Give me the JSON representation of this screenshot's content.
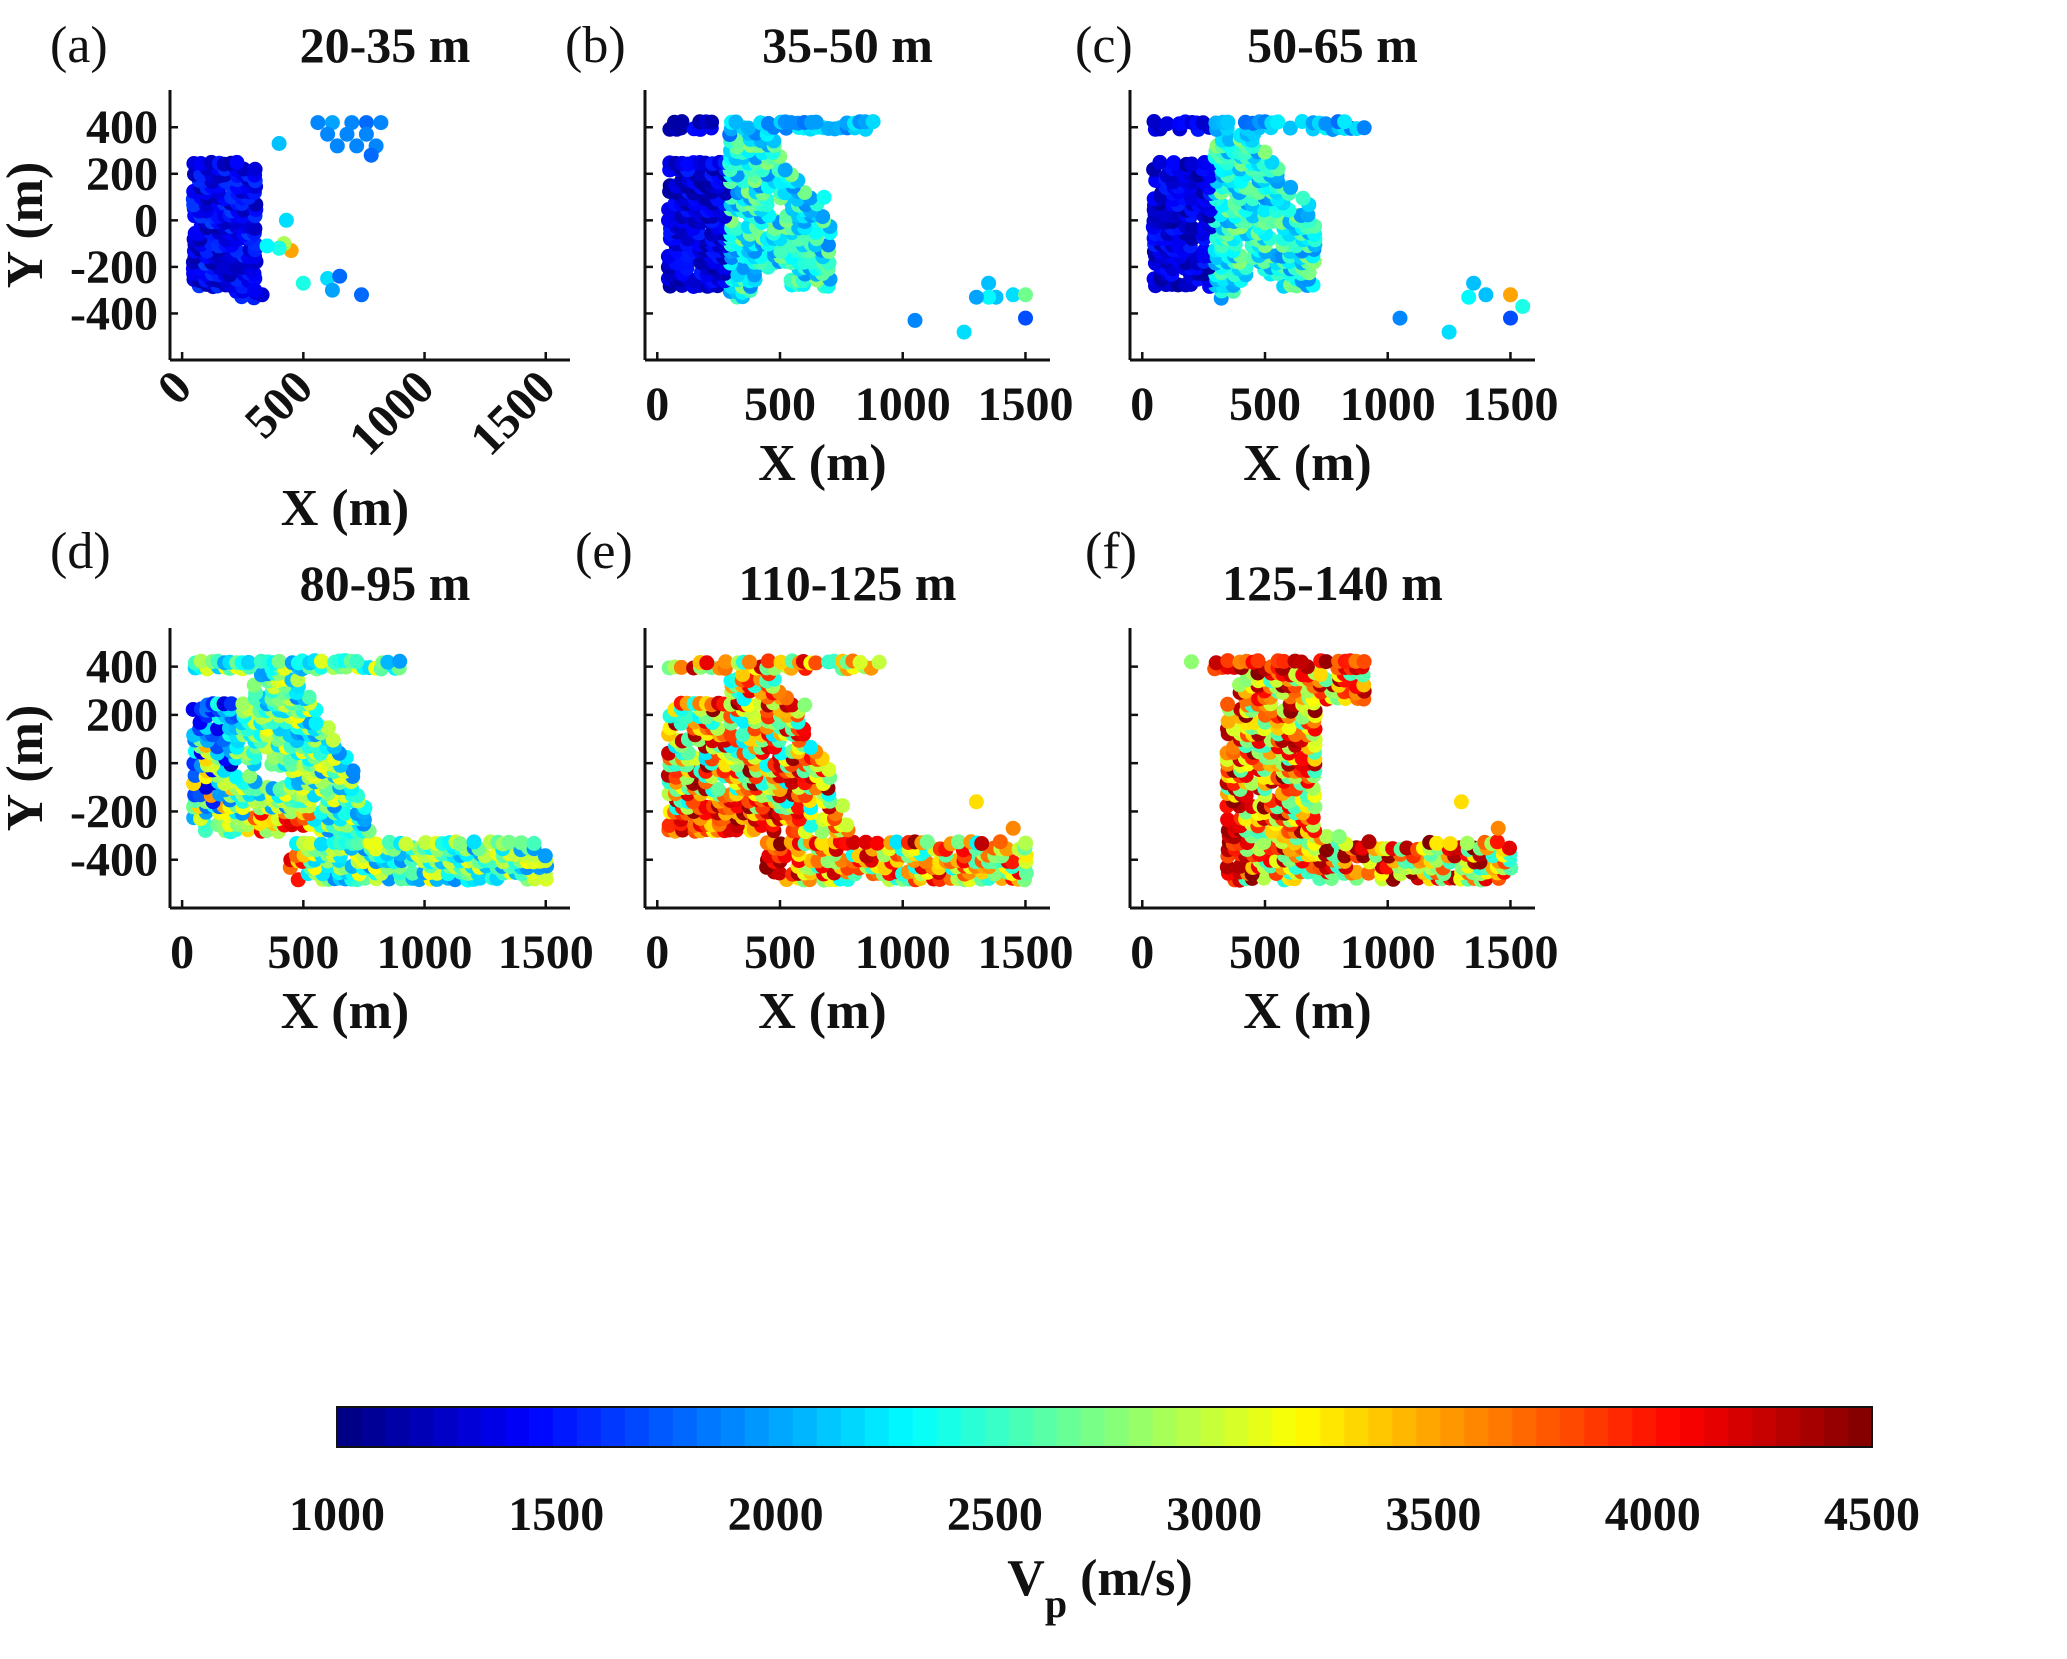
{
  "chart_data": {
    "type": "scatter",
    "panels": [
      {
        "tag": "(a)",
        "title": "20-35 m",
        "xlabel": "X (m)",
        "ylabel": "Y (m)",
        "xticks_rotated": true,
        "show_ylabel": true,
        "seed": 11,
        "mode": "shallow",
        "extra": [
          [
            450,
            -130,
            3500
          ],
          [
            420,
            -100,
            2900
          ],
          [
            400,
            -120,
            2400
          ],
          [
            350,
            -110,
            2300
          ],
          [
            430,
            0,
            2200
          ],
          [
            600,
            -250,
            2200
          ],
          [
            650,
            -240,
            1800
          ],
          [
            500,
            -270,
            2400
          ],
          [
            620,
            -300,
            2000
          ],
          [
            740,
            -320,
            1800
          ],
          [
            400,
            330,
            2100
          ],
          [
            560,
            420,
            1900
          ],
          [
            620,
            420,
            2000
          ],
          [
            700,
            420,
            1900
          ],
          [
            760,
            420,
            1800
          ],
          [
            820,
            420,
            1900
          ],
          [
            600,
            370,
            1900
          ],
          [
            680,
            370,
            1900
          ],
          [
            760,
            370,
            1900
          ],
          [
            640,
            320,
            1900
          ],
          [
            720,
            320,
            1900
          ],
          [
            800,
            320,
            1900
          ],
          [
            780,
            280,
            1800
          ],
          [
            330,
            -320,
            1300
          ],
          [
            300,
            -300,
            1400
          ]
        ]
      },
      {
        "tag": "(b)",
        "title": "35-50 m",
        "xlabel": "X (m)",
        "ylabel": "",
        "xticks_rotated": false,
        "show_ylabel": false,
        "seed": 23,
        "mode": "mid",
        "extra": [
          [
            1050,
            -430,
            1900
          ],
          [
            1250,
            -480,
            2200
          ],
          [
            1350,
            -270,
            2100
          ],
          [
            1380,
            -330,
            2100
          ],
          [
            1450,
            -320,
            2200
          ],
          [
            1500,
            -320,
            2700
          ],
          [
            1500,
            -420,
            1700
          ],
          [
            1350,
            -330,
            2300
          ],
          [
            1300,
            -330,
            2000
          ]
        ]
      },
      {
        "tag": "(c)",
        "title": "50-65 m",
        "xlabel": "X (m)",
        "ylabel": "",
        "xticks_rotated": false,
        "show_ylabel": false,
        "seed": 37,
        "mode": "mid",
        "extra": [
          [
            1050,
            -420,
            1900
          ],
          [
            1250,
            -480,
            2200
          ],
          [
            1350,
            -270,
            2100
          ],
          [
            1400,
            -320,
            2100
          ],
          [
            1500,
            -320,
            3500
          ],
          [
            1550,
            -370,
            2400
          ],
          [
            1500,
            -420,
            1700
          ],
          [
            1330,
            -330,
            2300
          ]
        ]
      },
      {
        "tag": "(d)",
        "title": "80-95 m",
        "xlabel": "X (m)",
        "ylabel": "Y (m)",
        "xticks_rotated": false,
        "show_ylabel": true,
        "seed": 41,
        "mode": "deep1",
        "extra": []
      },
      {
        "tag": "(e)",
        "title": "110-125 m",
        "xlabel": "X (m)",
        "ylabel": "",
        "xticks_rotated": false,
        "show_ylabel": false,
        "seed": 53,
        "mode": "deep2",
        "extra": [
          [
            1300,
            -160,
            3300
          ],
          [
            1450,
            -270,
            3600
          ]
        ]
      },
      {
        "tag": "(f)",
        "title": "125-140 m",
        "xlabel": "X (m)",
        "ylabel": "",
        "xticks_rotated": false,
        "show_ylabel": false,
        "seed": 67,
        "mode": "deep3",
        "extra": [
          [
            200,
            420,
            2800
          ],
          [
            1300,
            -160,
            3300
          ],
          [
            1450,
            -270,
            3600
          ]
        ]
      }
    ],
    "xlim": [
      -50,
      1600
    ],
    "ylim": [
      -600,
      560
    ],
    "xticks": [
      0,
      500,
      1000,
      1500
    ],
    "yticks": [
      -400,
      -200,
      0,
      200,
      400
    ],
    "colorbar": {
      "label_main": "V",
      "label_sub": "p",
      "label_unit": " (m/s)",
      "range": [
        1000,
        4500
      ],
      "ticks": [
        1000,
        1500,
        2000,
        2500,
        3000,
        3500,
        4000,
        4500
      ],
      "colormap": "jet"
    }
  }
}
